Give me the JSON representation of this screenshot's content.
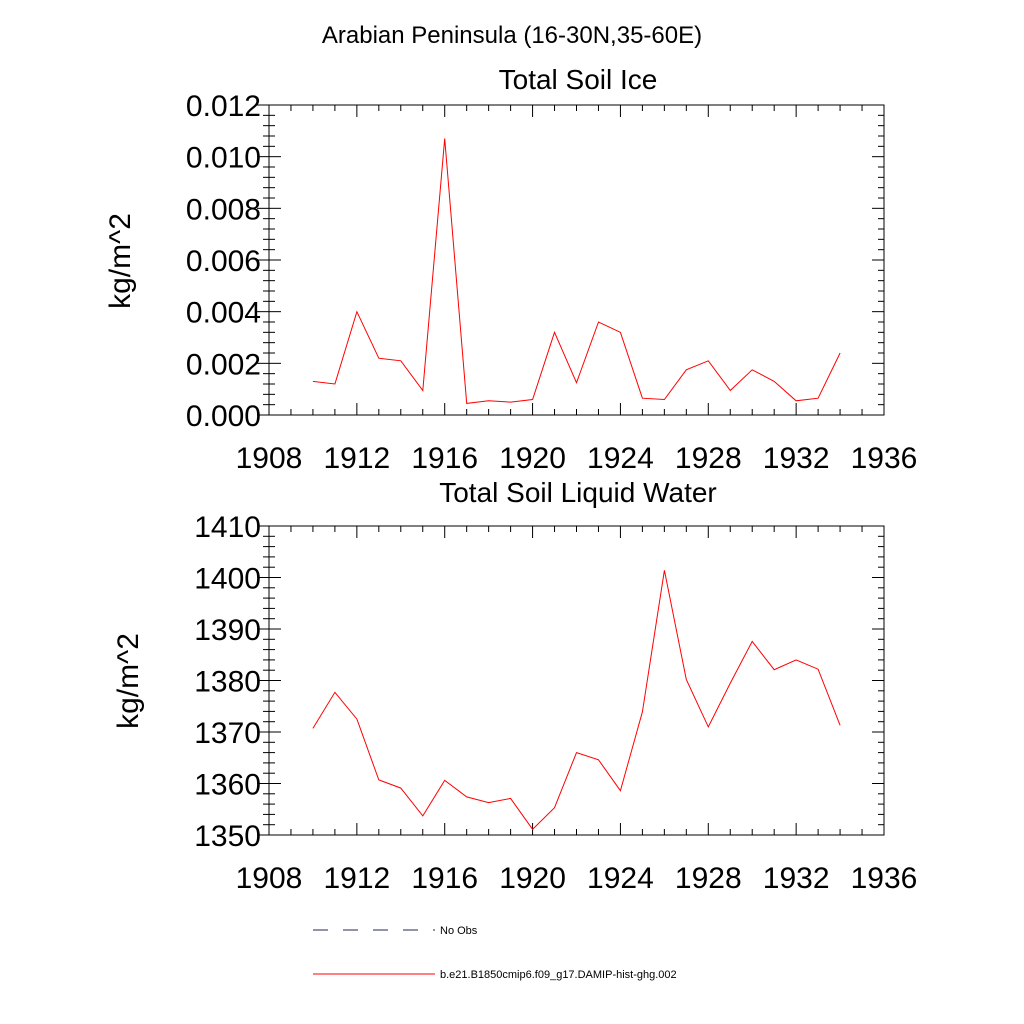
{
  "figure": {
    "title": "Arabian Peninsula (16-30N,35-60E)"
  },
  "colors": {
    "model": "#ff0000",
    "obs": "#1f2a5a",
    "axis": "#000000"
  },
  "legend": {
    "placement": "bottom-center",
    "items": [
      {
        "label": "No Obs",
        "style": "dashed",
        "color": "#1f2a5a"
      },
      {
        "label": "b.e21.B1850cmip6.f09_g17.DAMIP-hist-ghg.002",
        "style": "solid",
        "color": "#ff0000"
      }
    ]
  },
  "chart_data": [
    {
      "type": "line",
      "title": "Total Soil Ice",
      "xlabel": "",
      "ylabel": "kg/m^2",
      "xlim": [
        1908,
        1936
      ],
      "ylim": [
        0,
        0.012
      ],
      "x_ticks": [
        1908,
        1912,
        1916,
        1920,
        1924,
        1928,
        1932,
        1936
      ],
      "x_tick_labels": [
        "1908",
        "1912",
        "1916",
        "1920",
        "1924",
        "1928",
        "1932",
        "1936"
      ],
      "y_ticks": [
        0,
        0.002,
        0.004,
        0.006,
        0.008,
        0.01,
        0.012
      ],
      "y_tick_labels": [
        "0.000",
        "0.002",
        "0.004",
        "0.006",
        "0.008",
        "0.010",
        "0.012"
      ],
      "grid": false,
      "series": [
        {
          "name": "b.e21.B1850cmip6.f09_g17.DAMIP-hist-ghg.002",
          "color": "#ff0000",
          "x": [
            1910,
            1911,
            1912,
            1913,
            1914,
            1915,
            1916,
            1917,
            1918,
            1919,
            1920,
            1921,
            1922,
            1923,
            1924,
            1925,
            1926,
            1927,
            1928,
            1929,
            1930,
            1931,
            1932,
            1933,
            1934
          ],
          "y": [
            0.0013,
            0.0012,
            0.004,
            0.0022,
            0.0021,
            0.00095,
            0.0107,
            0.00045,
            0.00055,
            0.0005,
            0.0006,
            0.0032,
            0.00125,
            0.0036,
            0.0032,
            0.00065,
            0.0006,
            0.00175,
            0.0021,
            0.00095,
            0.00175,
            0.0013,
            0.00055,
            0.00065,
            0.0024
          ]
        }
      ]
    },
    {
      "type": "line",
      "title": "Total Soil Liquid Water",
      "xlabel": "",
      "ylabel": "kg/m^2",
      "xlim": [
        1908,
        1936
      ],
      "ylim": [
        1350,
        1410
      ],
      "x_ticks": [
        1908,
        1912,
        1916,
        1920,
        1924,
        1928,
        1932,
        1936
      ],
      "x_tick_labels": [
        "1908",
        "1912",
        "1916",
        "1920",
        "1924",
        "1928",
        "1932",
        "1936"
      ],
      "y_ticks": [
        1350,
        1360,
        1370,
        1380,
        1390,
        1400,
        1410
      ],
      "y_tick_labels": [
        "1350",
        "1360",
        "1370",
        "1380",
        "1390",
        "1400",
        "1410"
      ],
      "grid": false,
      "series": [
        {
          "name": "b.e21.B1850cmip6.f09_g17.DAMIP-hist-ghg.002",
          "color": "#ff0000",
          "x": [
            1910,
            1911,
            1912,
            1913,
            1914,
            1915,
            1916,
            1917,
            1918,
            1919,
            1920,
            1921,
            1922,
            1923,
            1924,
            1925,
            1926,
            1927,
            1928,
            1929,
            1930,
            1931,
            1932,
            1933,
            1934
          ],
          "y": [
            1370.7,
            1377.7,
            1372.5,
            1360.7,
            1359.1,
            1353.7,
            1360.6,
            1357.4,
            1356.3,
            1357.1,
            1351.1,
            1355.3,
            1366.0,
            1364.6,
            1358.6,
            1373.9,
            1401.4,
            1380.2,
            1371.0,
            1379.5,
            1387.6,
            1382.1,
            1384.0,
            1382.2,
            1371.3
          ]
        }
      ]
    }
  ]
}
